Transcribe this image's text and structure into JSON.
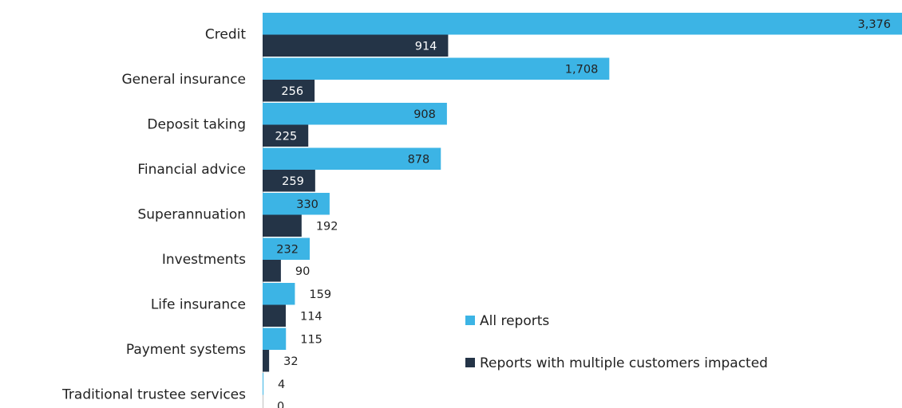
{
  "chart_data": {
    "type": "bar",
    "orientation": "horizontal",
    "categories": [
      "Credit",
      "General insurance",
      "Deposit taking",
      "Financial advice",
      "Superannuation",
      "Investments",
      "Life insurance",
      "Payment systems",
      "Traditional trustee services"
    ],
    "series": [
      {
        "name": "All reports",
        "color": "#3cb4e5",
        "values": [
          3376,
          1708,
          908,
          878,
          330,
          232,
          159,
          115,
          4
        ],
        "value_labels": [
          "3,376",
          "1,708",
          "908",
          "878",
          "330",
          "232",
          "159",
          "115",
          "4"
        ]
      },
      {
        "name": "Reports with multiple customers impacted",
        "color": "#243447",
        "values": [
          914,
          256,
          225,
          259,
          192,
          90,
          114,
          32,
          0
        ]
      }
    ],
    "xlim": [
      0,
      3150
    ],
    "legend": "right"
  }
}
